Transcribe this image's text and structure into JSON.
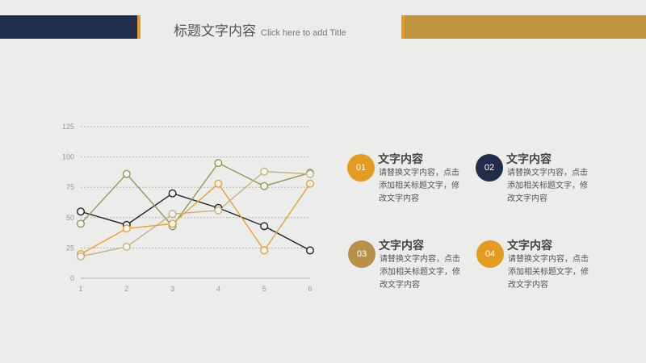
{
  "header": {
    "title_cn": "标题文字内容",
    "title_en": "Click here to add Title",
    "colors": {
      "navy": "#1f2d4b",
      "orange": "#e39b22",
      "gold": "#c0943c"
    }
  },
  "chart_data": {
    "type": "line",
    "x": [
      1,
      2,
      3,
      4,
      5,
      6
    ],
    "ylim": [
      0,
      125
    ],
    "yticks": [
      0,
      25,
      50,
      75,
      100,
      125
    ],
    "grid": true,
    "series": [
      {
        "color": "#222222",
        "values": [
          55,
          44,
          70,
          58,
          43,
          23
        ]
      },
      {
        "color": "#8e9a5a",
        "values": [
          45,
          86,
          43,
          95,
          76,
          87
        ]
      },
      {
        "color": "#e8a235",
        "values": [
          20,
          41,
          45,
          78,
          23,
          78
        ]
      },
      {
        "color": "#c7b07e",
        "values": [
          18,
          26,
          53,
          56,
          88,
          86
        ]
      }
    ]
  },
  "items": [
    {
      "num": "01",
      "color": "#e39b22",
      "title": "文字内容",
      "body": "请替换文字内容，点击添加相关标题文字，修改文字内容"
    },
    {
      "num": "02",
      "color": "#1f2d4b",
      "title": "文字内容",
      "body": "请替换文字内容，点击添加相关标题文字，修改文字内容"
    },
    {
      "num": "03",
      "color": "#b8904a",
      "title": "文字内容",
      "body": "请替换文字内容，点击添加相关标题文字，修改文字内容"
    },
    {
      "num": "04",
      "color": "#e39b22",
      "title": "文字内容",
      "body": "请替换文字内容，点击添加相关标题文字，修改文字内容"
    }
  ]
}
